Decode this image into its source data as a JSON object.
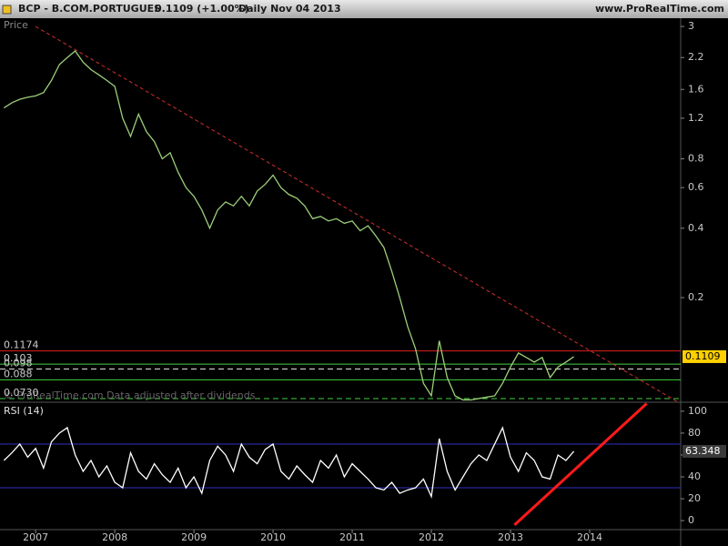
{
  "header": {
    "symbol": "BCP - B.COM.PORTUGUES",
    "quote": "0.1109 (+1.00%)",
    "period": "Daily  Nov 04 2013",
    "source": "www.ProRealTime.com"
  },
  "watermark": "© ProRealTime.com Data adjusted after dividends",
  "chart_data": [
    {
      "type": "line",
      "ylabel": "Price",
      "log_scale": true,
      "xlim": [
        2006.55,
        2015.15
      ],
      "ylim": [
        0.071,
        3.2
      ],
      "yticks": [
        3,
        2.2,
        1.6,
        1.2,
        0.8,
        0.6,
        0.4,
        0.2
      ],
      "x": [
        2006.6,
        2006.7,
        2006.8,
        2006.9,
        2007.0,
        2007.1,
        2007.2,
        2007.3,
        2007.4,
        2007.5,
        2007.6,
        2007.7,
        2007.8,
        2007.9,
        2008.0,
        2008.1,
        2008.2,
        2008.3,
        2008.4,
        2008.5,
        2008.6,
        2008.7,
        2008.8,
        2008.9,
        2009.0,
        2009.1,
        2009.2,
        2009.3,
        2009.4,
        2009.5,
        2009.6,
        2009.7,
        2009.8,
        2009.9,
        2010.0,
        2010.1,
        2010.2,
        2010.3,
        2010.4,
        2010.5,
        2010.6,
        2010.7,
        2010.8,
        2010.9,
        2011.0,
        2011.1,
        2011.2,
        2011.3,
        2011.4,
        2011.5,
        2011.6,
        2011.7,
        2011.8,
        2011.9,
        2012.0,
        2012.1,
        2012.2,
        2012.3,
        2012.4,
        2012.5,
        2012.6,
        2012.7,
        2012.8,
        2012.9,
        2013.0,
        2013.1,
        2013.2,
        2013.3,
        2013.4,
        2013.5,
        2013.6,
        2013.7,
        2013.8
      ],
      "series": [
        {
          "color": "#9ccf7a",
          "values": [
            1.33,
            1.4,
            1.45,
            1.48,
            1.5,
            1.55,
            1.75,
            2.05,
            2.2,
            2.35,
            2.1,
            1.95,
            1.85,
            1.75,
            1.65,
            1.2,
            1.0,
            1.25,
            1.05,
            0.95,
            0.8,
            0.85,
            0.7,
            0.6,
            0.55,
            0.48,
            0.4,
            0.48,
            0.52,
            0.5,
            0.55,
            0.5,
            0.58,
            0.62,
            0.68,
            0.6,
            0.56,
            0.54,
            0.5,
            0.44,
            0.45,
            0.43,
            0.44,
            0.42,
            0.43,
            0.39,
            0.41,
            0.37,
            0.33,
            0.26,
            0.2,
            0.15,
            0.12,
            0.085,
            0.075,
            0.13,
            0.09,
            0.075,
            0.072,
            0.072,
            0.073,
            0.074,
            0.075,
            0.085,
            0.1,
            0.115,
            0.11,
            0.105,
            0.11,
            0.09,
            0.1,
            0.105,
            0.1109
          ]
        }
      ],
      "levels": [
        {
          "value": 0.1174,
          "color": "#e02020",
          "dash": false
        },
        {
          "value": 0.103,
          "color": "#40d040",
          "dash": false
        },
        {
          "value": 0.098,
          "color": "#e0e0e0",
          "dash": true
        },
        {
          "value": 0.088,
          "color": "#40d040",
          "dash": false
        },
        {
          "value": 0.073,
          "label": "0.0730",
          "color": "#40d040",
          "dash": true
        }
      ],
      "trendline": {
        "x": [
          2007.0,
          2015.1
        ],
        "y": [
          3.0,
          0.071
        ],
        "color": "#d03030",
        "dash": true
      }
    },
    {
      "type": "line",
      "title": "RSI (14)",
      "xlim": [
        2006.55,
        2015.15
      ],
      "ylim": [
        -7.4,
        107.4
      ],
      "yticks": [
        100,
        80,
        60,
        40,
        20,
        0
      ],
      "xticks": [
        2007,
        2008,
        2009,
        2010,
        2011,
        2012,
        2013,
        2014
      ],
      "x": [
        2006.6,
        2006.7,
        2006.8,
        2006.9,
        2007.0,
        2007.1,
        2007.2,
        2007.3,
        2007.4,
        2007.5,
        2007.6,
        2007.7,
        2007.8,
        2007.9,
        2008.0,
        2008.1,
        2008.2,
        2008.3,
        2008.4,
        2008.5,
        2008.6,
        2008.7,
        2008.8,
        2008.9,
        2009.0,
        2009.1,
        2009.2,
        2009.3,
        2009.4,
        2009.5,
        2009.6,
        2009.7,
        2009.8,
        2009.9,
        2010.0,
        2010.1,
        2010.2,
        2010.3,
        2010.4,
        2010.5,
        2010.6,
        2010.7,
        2010.8,
        2010.9,
        2011.0,
        2011.1,
        2011.2,
        2011.3,
        2011.4,
        2011.5,
        2011.6,
        2011.7,
        2011.8,
        2011.9,
        2012.0,
        2012.1,
        2012.2,
        2012.3,
        2012.4,
        2012.5,
        2012.6,
        2012.7,
        2012.8,
        2012.9,
        2013.0,
        2013.1,
        2013.2,
        2013.3,
        2013.4,
        2013.5,
        2013.6,
        2013.7,
        2013.8
      ],
      "series": [
        {
          "color": "#ffffff",
          "values": [
            55,
            62,
            70,
            58,
            66,
            48,
            72,
            80,
            85,
            60,
            45,
            55,
            40,
            50,
            35,
            30,
            62,
            45,
            38,
            52,
            42,
            35,
            48,
            30,
            40,
            25,
            55,
            68,
            60,
            45,
            70,
            58,
            52,
            65,
            70,
            45,
            38,
            50,
            42,
            35,
            55,
            48,
            60,
            40,
            52,
            45,
            38,
            30,
            28,
            35,
            25,
            28,
            30,
            38,
            22,
            75,
            45,
            28,
            40,
            52,
            60,
            55,
            70,
            85,
            58,
            45,
            62,
            55,
            40,
            38,
            60,
            55,
            63.348
          ]
        }
      ],
      "levels": [
        {
          "value": 70,
          "color": "#3030c0",
          "dash": false
        },
        {
          "value": 30,
          "color": "#3030c0",
          "dash": false
        }
      ],
      "trendline": {
        "x": [
          2013.05,
          2014.72
        ],
        "y": [
          -4,
          107
        ],
        "color": "#ff1a1a",
        "dash": false
      }
    }
  ]
}
